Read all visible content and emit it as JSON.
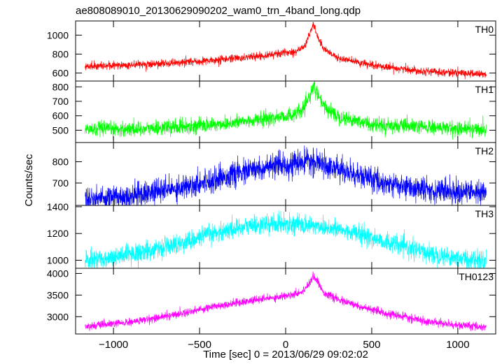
{
  "chart_data": {
    "type": "line",
    "title": "ae808089010_20130629090202_wam0_trn_4band_long.qdp",
    "xlabel": "Time [sec] 0 = 2013/06/29 09:02:02",
    "ylabel": "Counts/sec",
    "xlim": [
      -1220,
      1220
    ],
    "x_ticks": [
      -1000,
      -500,
      0,
      500,
      1000
    ],
    "x_tick_labels": [
      "−1000",
      "−500",
      "0",
      "500",
      "1000"
    ],
    "grid": false,
    "panels": [
      {
        "name": "TH0",
        "color": "#ff0000",
        "ylim": [
          515,
          1150
        ],
        "yticks": [
          600,
          800,
          1000
        ],
        "noise": 20,
        "series": [
          [
            -1170,
            670
          ],
          [
            -800,
            690
          ],
          [
            -400,
            735
          ],
          [
            -100,
            790
          ],
          [
            60,
            830
          ],
          [
            110,
            880
          ],
          [
            145,
            1040
          ],
          [
            160,
            1115
          ],
          [
            180,
            1010
          ],
          [
            220,
            860
          ],
          [
            300,
            760
          ],
          [
            500,
            680
          ],
          [
            800,
            620
          ],
          [
            1170,
            585
          ]
        ]
      },
      {
        "name": "TH1",
        "color": "#00ff00",
        "ylim": [
          415,
          840
        ],
        "yticks": [
          500,
          600,
          700,
          800
        ],
        "noise": 25,
        "series": [
          [
            -1170,
            505
          ],
          [
            -800,
            510
          ],
          [
            -400,
            540
          ],
          [
            -100,
            580
          ],
          [
            60,
            610
          ],
          [
            110,
            650
          ],
          [
            145,
            755
          ],
          [
            160,
            805
          ],
          [
            180,
            760
          ],
          [
            220,
            665
          ],
          [
            300,
            600
          ],
          [
            500,
            540
          ],
          [
            800,
            520
          ],
          [
            1170,
            505
          ]
        ]
      },
      {
        "name": "TH2",
        "color": "#0000ff",
        "ylim": [
          595,
          890
        ],
        "yticks": [
          700,
          800
        ],
        "noise": 28,
        "series": [
          [
            -1170,
            625
          ],
          [
            -900,
            640
          ],
          [
            -600,
            680
          ],
          [
            -400,
            720
          ],
          [
            -200,
            760
          ],
          [
            0,
            785
          ],
          [
            140,
            800
          ],
          [
            250,
            780
          ],
          [
            400,
            740
          ],
          [
            600,
            695
          ],
          [
            800,
            670
          ],
          [
            1000,
            660
          ],
          [
            1170,
            655
          ]
        ]
      },
      {
        "name": "TH3",
        "color": "#00ffff",
        "ylim": [
          940,
          1410
        ],
        "yticks": [
          1000,
          1200,
          1400
        ],
        "noise": 35,
        "series": [
          [
            -1170,
            995
          ],
          [
            -900,
            1040
          ],
          [
            -600,
            1130
          ],
          [
            -400,
            1210
          ],
          [
            -200,
            1260
          ],
          [
            0,
            1275
          ],
          [
            200,
            1255
          ],
          [
            400,
            1205
          ],
          [
            600,
            1130
          ],
          [
            800,
            1060
          ],
          [
            1000,
            1015
          ],
          [
            1170,
            1000
          ]
        ]
      },
      {
        "name": "TH0123",
        "color": "#ff00ff",
        "ylim": [
          2600,
          4120
        ],
        "yticks": [
          3000,
          3500,
          4000
        ],
        "noise": 45,
        "series": [
          [
            -1170,
            2770
          ],
          [
            -900,
            2870
          ],
          [
            -600,
            3080
          ],
          [
            -400,
            3250
          ],
          [
            -200,
            3370
          ],
          [
            0,
            3480
          ],
          [
            100,
            3580
          ],
          [
            140,
            3800
          ],
          [
            160,
            3950
          ],
          [
            180,
            3850
          ],
          [
            220,
            3560
          ],
          [
            300,
            3400
          ],
          [
            500,
            3150
          ],
          [
            800,
            2900
          ],
          [
            1000,
            2800
          ],
          [
            1170,
            2760
          ]
        ]
      }
    ]
  }
}
